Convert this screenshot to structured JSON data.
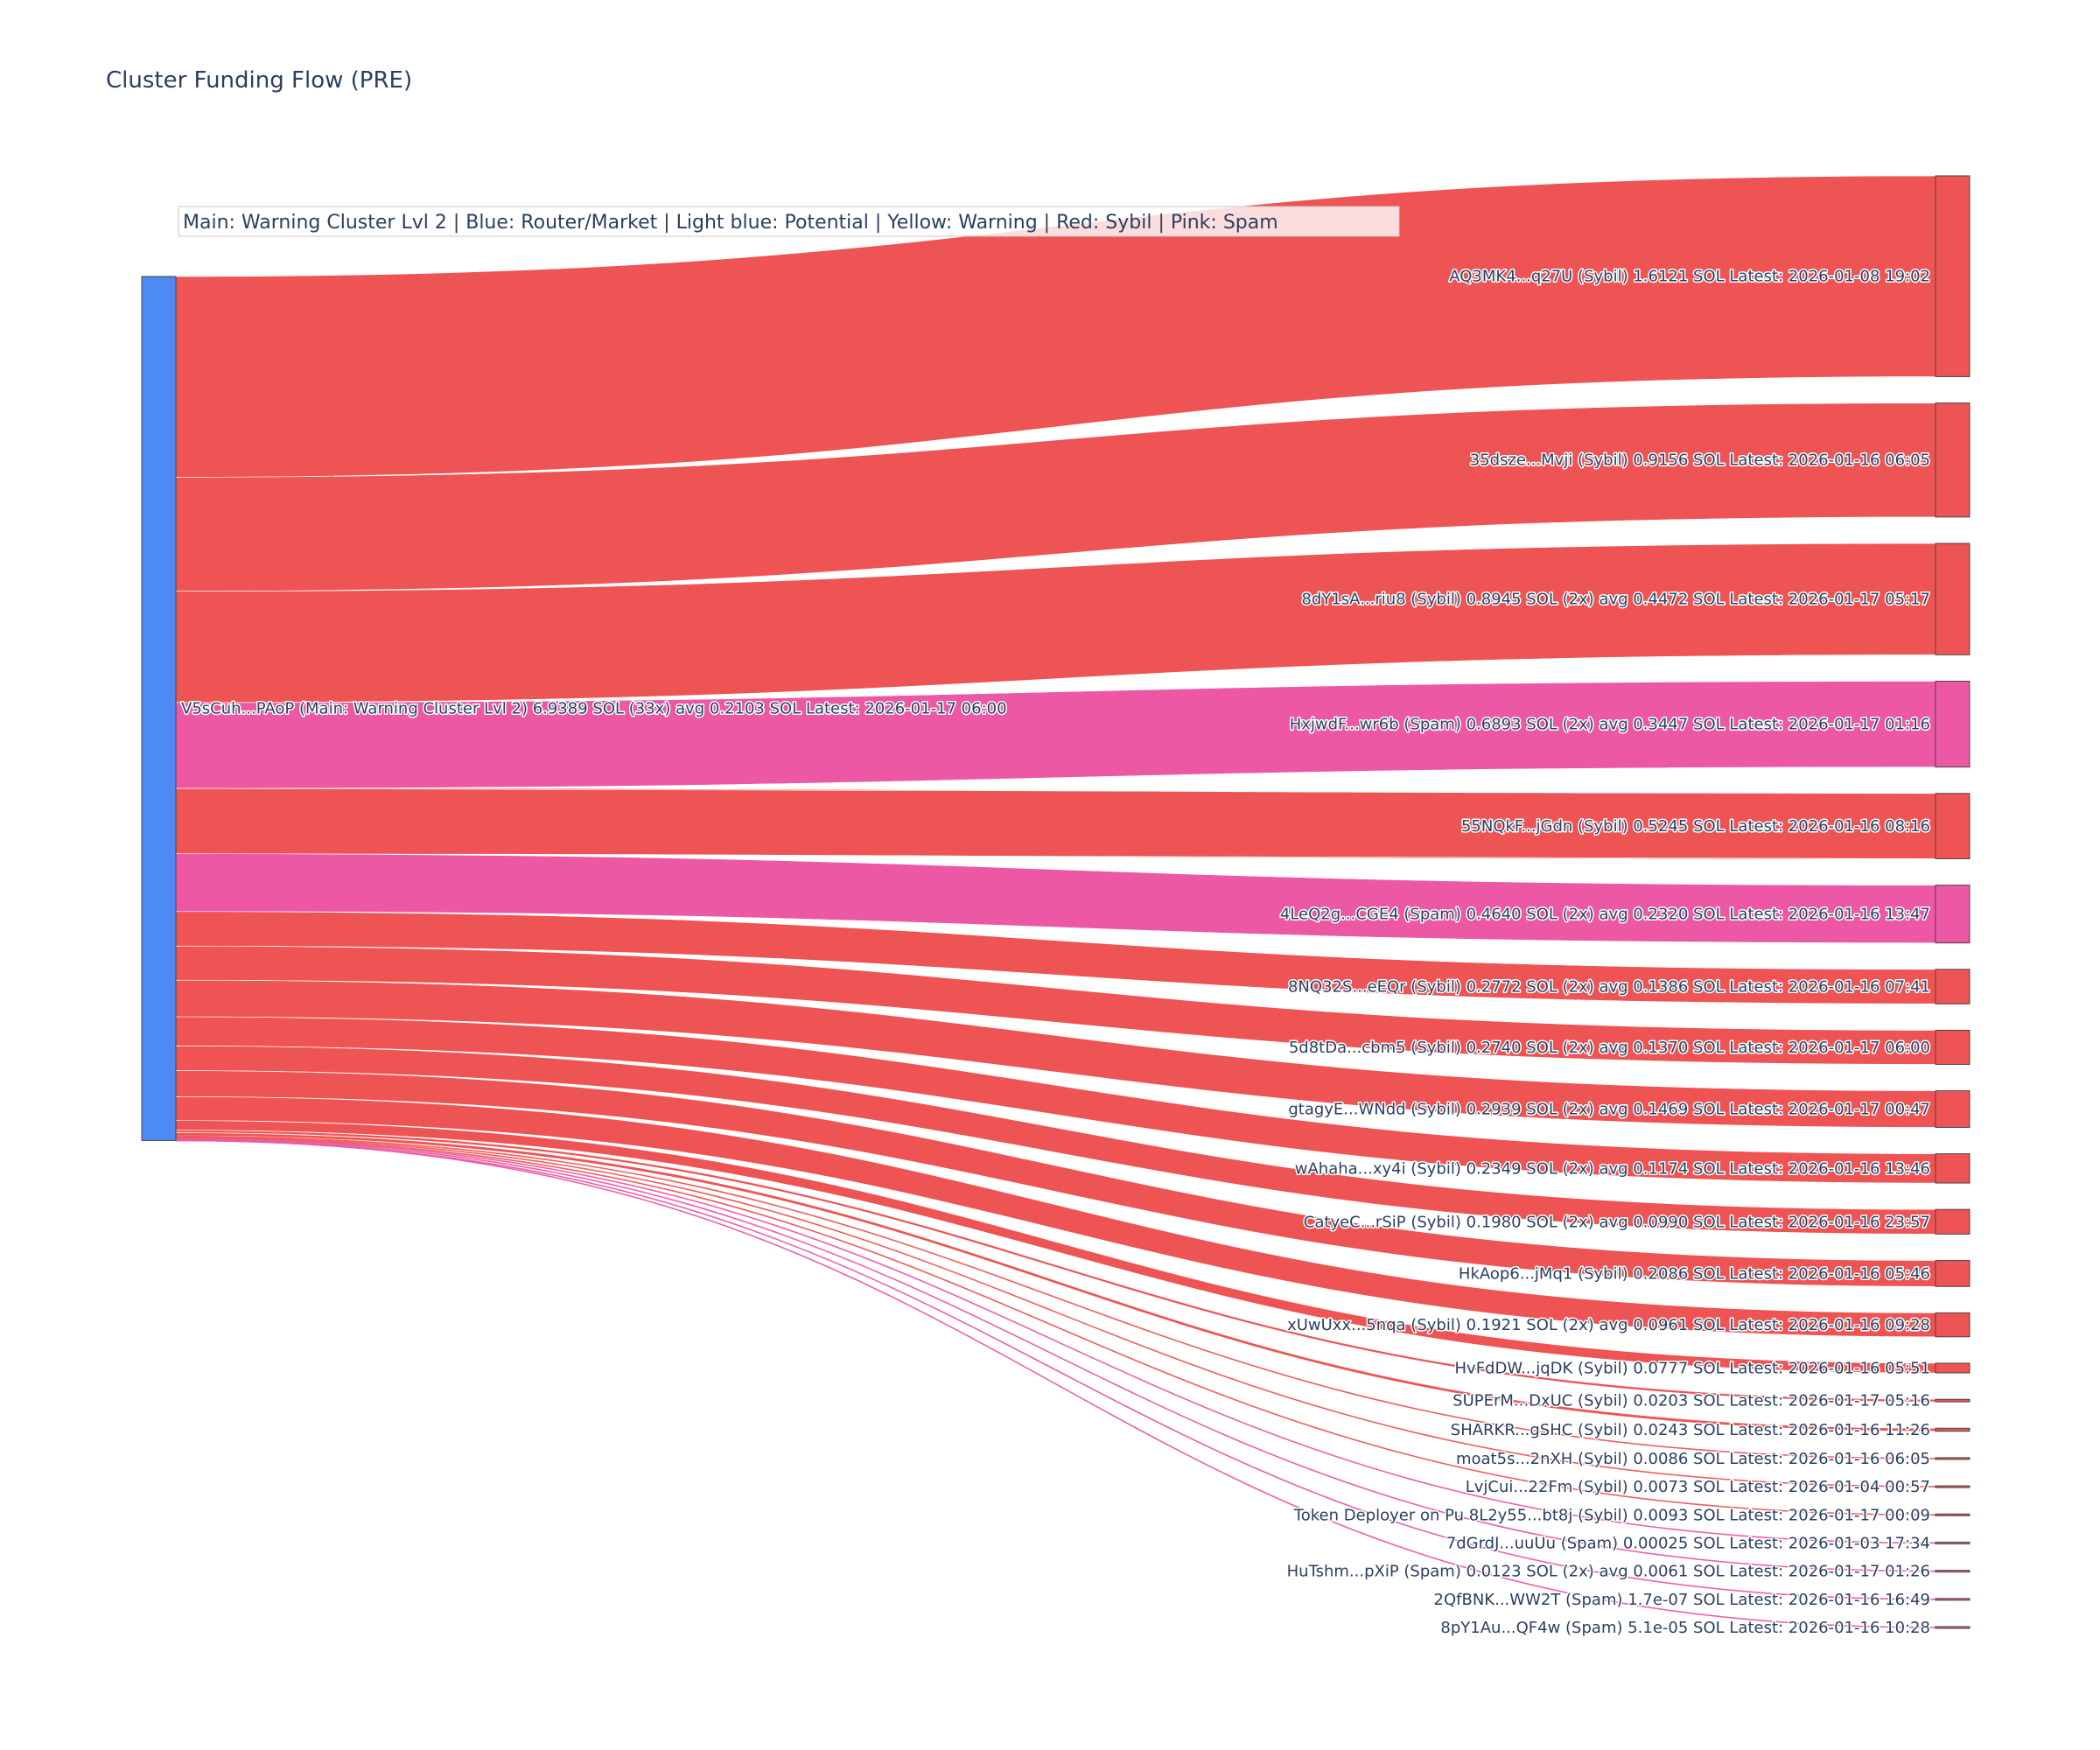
{
  "chart_data": {
    "type": "sankey",
    "title": "Cluster Funding Flow (PRE)",
    "legend_text": "Main: Warning Cluster Lvl 2  |  Blue: Router/Market | Light blue: Potential | Yellow: Warning | Red: Sybil | Pink: Spam",
    "colors": {
      "main": "#4d8af4",
      "sybil": "#ef5454",
      "spam": "#ec58a4",
      "legend_bg": "#ffffff"
    },
    "source": {
      "label": "V5sCuh...PAoP (Main: Warning Cluster Lvl 2) 6.9389 SOL (33x) avg 0.2103 SOL Latest: 2026-01-17 06:00",
      "value": 6.9389,
      "category": "main"
    },
    "targets": [
      {
        "label": "AQ3MK4...q27U (Sybil) 1.6121 SOL Latest: 2026-01-08 19:02",
        "value": 1.6121,
        "category": "sybil"
      },
      {
        "label": "35dsze...Mvji (Sybil) 0.9156 SOL Latest: 2026-01-16 06:05",
        "value": 0.9156,
        "category": "sybil"
      },
      {
        "label": "8dY1sA...riu8 (Sybil) 0.8945 SOL (2x) avg 0.4472 SOL Latest: 2026-01-17 05:17",
        "value": 0.8945,
        "category": "sybil"
      },
      {
        "label": "HxjwdF...wr6b (Spam) 0.6893 SOL (2x) avg 0.3447 SOL Latest: 2026-01-17 01:16",
        "value": 0.6893,
        "category": "spam"
      },
      {
        "label": "55NQkF...jGdn (Sybil) 0.5245 SOL Latest: 2026-01-16 08:16",
        "value": 0.5245,
        "category": "sybil"
      },
      {
        "label": "4LeQ2g...CGE4 (Spam) 0.4640 SOL (2x) avg 0.2320 SOL Latest: 2026-01-16 13:47",
        "value": 0.464,
        "category": "spam"
      },
      {
        "label": "8NQ32S...eEQr (Sybil) 0.2772 SOL (2x) avg 0.1386 SOL Latest: 2026-01-16 07:41",
        "value": 0.2772,
        "category": "sybil"
      },
      {
        "label": "5d8tDa...cbm5 (Sybil) 0.2740 SOL (2x) avg 0.1370 SOL Latest: 2026-01-17 06:00",
        "value": 0.274,
        "category": "sybil"
      },
      {
        "label": "gtagyE...WNdd (Sybil) 0.2939 SOL (2x) avg 0.1469 SOL Latest: 2026-01-17 00:47",
        "value": 0.2939,
        "category": "sybil"
      },
      {
        "label": "wAhaha...xy4i (Sybil) 0.2349 SOL (2x) avg 0.1174 SOL Latest: 2026-01-16 13:46",
        "value": 0.2349,
        "category": "sybil"
      },
      {
        "label": "CatyeC...rSiP (Sybil) 0.1980 SOL (2x) avg 0.0990 SOL Latest: 2026-01-16 23:57",
        "value": 0.198,
        "category": "sybil"
      },
      {
        "label": "HkAop6...jMq1 (Sybil) 0.2086 SOL Latest: 2026-01-16 05:46",
        "value": 0.2086,
        "category": "sybil"
      },
      {
        "label": "xUwUxx...5nqa (Sybil) 0.1921 SOL (2x) avg 0.0961 SOL Latest: 2026-01-16 09:28",
        "value": 0.1921,
        "category": "sybil"
      },
      {
        "label": "HvFdDW...jqDK (Sybil) 0.0777 SOL Latest: 2026-01-16 05:51",
        "value": 0.0777,
        "category": "sybil"
      },
      {
        "label": "SUPErM...DxUC (Sybil) 0.0203 SOL Latest: 2026-01-17 05:16",
        "value": 0.0203,
        "category": "sybil"
      },
      {
        "label": "SHARKR...gSHC (Sybil) 0.0243 SOL Latest: 2026-01-16 11:26",
        "value": 0.0243,
        "category": "sybil"
      },
      {
        "label": "moat5s...2nXH (Sybil) 0.0086 SOL Latest: 2026-01-16 06:05",
        "value": 0.0086,
        "category": "sybil"
      },
      {
        "label": "LvjCui...22Fm (Sybil) 0.0073 SOL Latest: 2026-01-04 00:57",
        "value": 0.0073,
        "category": "sybil"
      },
      {
        "label": "Token Deployer on Pu 8L2y55...bt8j (Sybil) 0.0093 SOL Latest: 2026-01-17 00:09",
        "value": 0.0093,
        "category": "sybil"
      },
      {
        "label": "7dGrdJ...uuUu (Spam) 0.00025 SOL Latest: 2026-01-03 17:34",
        "value": 0.00025,
        "category": "spam"
      },
      {
        "label": "HuTshm...pXiP (Spam) 0.0123 SOL (2x) avg 0.0061 SOL Latest: 2026-01-17 01:26",
        "value": 0.0123,
        "category": "spam"
      },
      {
        "label": "2QfBNK...WW2T (Spam) 1.7e-07 SOL Latest: 2026-01-16 16:49",
        "value": 1.7e-07,
        "category": "spam"
      },
      {
        "label": "8pY1Au...QF4w (Spam) 5.1e-05 SOL Latest: 2026-01-16 10:28",
        "value": 5.1e-05,
        "category": "spam"
      }
    ]
  }
}
